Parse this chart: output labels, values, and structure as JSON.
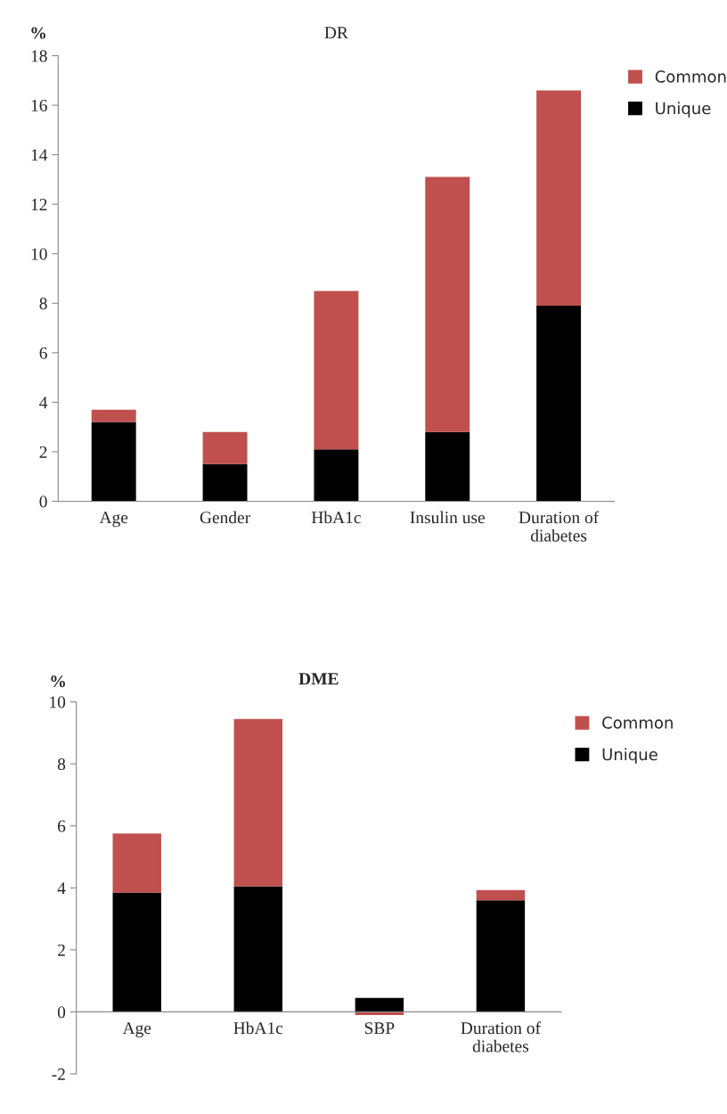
{
  "chart_data": [
    {
      "type": "bar",
      "title": "DR",
      "ylabel": "%",
      "categories": [
        "Age",
        "Gender",
        "HbA1c",
        "Insulin use",
        "Duration of\ndiabetes"
      ],
      "stacked": true,
      "ylim": [
        0,
        18
      ],
      "yticks": [
        0,
        2,
        4,
        6,
        8,
        10,
        12,
        14,
        16,
        18
      ],
      "legend": "top right",
      "grid": false,
      "series": [
        {
          "name": "Unique",
          "color": "#000000",
          "values": [
            3.2,
            1.5,
            2.1,
            2.8,
            7.9
          ]
        },
        {
          "name": "Common",
          "color": "#c0504d",
          "values": [
            0.5,
            1.3,
            6.4,
            10.3,
            8.7
          ]
        }
      ]
    },
    {
      "type": "bar",
      "title": "DME",
      "ylabel": "%",
      "categories": [
        "Age",
        "HbA1c",
        "SBP",
        "Duration of\ndiabetes"
      ],
      "stacked": true,
      "ylim": [
        -2,
        10
      ],
      "yticks": [
        -2,
        0,
        2,
        4,
        6,
        8,
        10
      ],
      "legend": "top right",
      "grid": false,
      "series": [
        {
          "name": "Unique",
          "color": "#000000",
          "values": [
            3.85,
            4.05,
            0.45,
            3.6
          ]
        },
        {
          "name": "Common",
          "color": "#c0504d",
          "values": [
            1.9,
            5.4,
            -0.1,
            0.33
          ]
        }
      ]
    }
  ]
}
